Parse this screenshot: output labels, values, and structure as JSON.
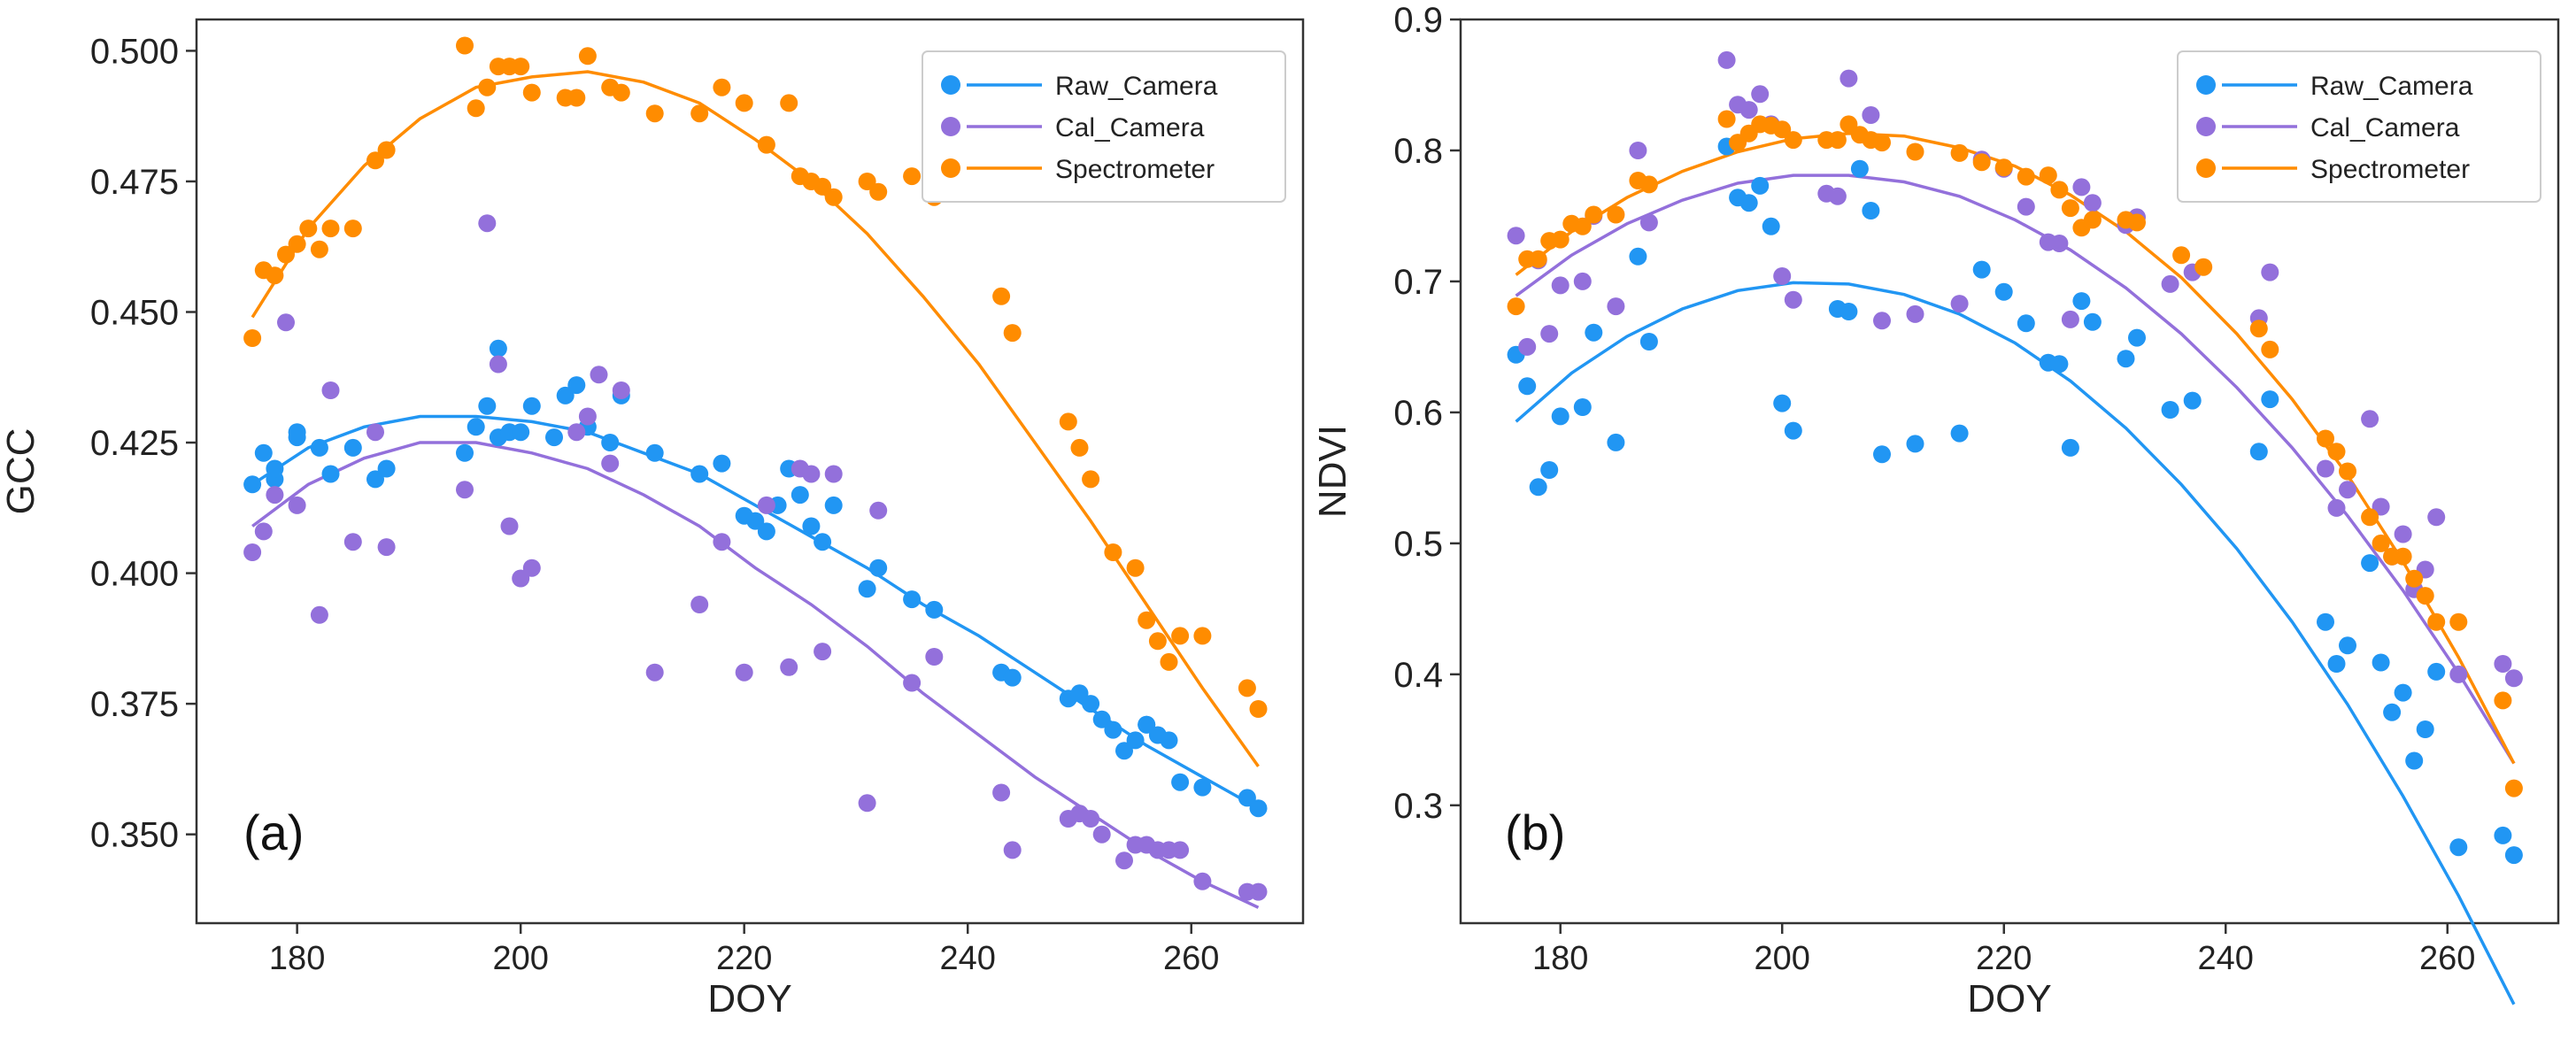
{
  "figure": {
    "panels": [
      "(a)",
      "(b)"
    ]
  },
  "chart_data": [
    {
      "type": "scatter",
      "panel_label": "(a)",
      "xlabel": "DOY",
      "ylabel": "GCC",
      "xlim": [
        171,
        270
      ],
      "ylim": [
        0.333,
        0.506
      ],
      "xticks": [
        180,
        200,
        220,
        240,
        260
      ],
      "yticks": [
        "0.350",
        "0.375",
        "0.400",
        "0.425",
        "0.450",
        "0.475",
        "0.500"
      ],
      "ytick_values": [
        0.35,
        0.375,
        0.4,
        0.425,
        0.45,
        0.475,
        0.5
      ],
      "legend_position": "top-right",
      "grid": false,
      "series": [
        {
          "name": "Raw_Camera",
          "color": "#2196f3",
          "x": [
            176,
            177,
            178,
            178,
            180,
            180,
            182,
            183,
            185,
            187,
            188,
            195,
            196,
            197,
            198,
            198,
            199,
            200,
            201,
            203,
            204,
            205,
            206,
            208,
            209,
            212,
            216,
            218,
            220,
            221,
            222,
            223,
            224,
            225,
            226,
            227,
            228,
            231,
            232,
            235,
            237,
            243,
            244,
            249,
            250,
            251,
            252,
            253,
            254,
            255,
            256,
            256,
            257,
            258,
            259,
            261,
            265,
            266
          ],
          "y": [
            0.417,
            0.423,
            0.418,
            0.42,
            0.426,
            0.427,
            0.424,
            0.419,
            0.424,
            0.418,
            0.42,
            0.423,
            0.428,
            0.432,
            0.443,
            0.426,
            0.427,
            0.427,
            0.432,
            0.426,
            0.434,
            0.436,
            0.428,
            0.425,
            0.434,
            0.423,
            0.419,
            0.421,
            0.411,
            0.41,
            0.408,
            0.413,
            0.42,
            0.415,
            0.409,
            0.406,
            0.413,
            0.397,
            0.401,
            0.395,
            0.393,
            0.381,
            0.38,
            0.376,
            0.377,
            0.375,
            0.372,
            0.37,
            0.366,
            0.368,
            0.371,
            0.371,
            0.369,
            0.368,
            0.36,
            0.359,
            0.357,
            0.355
          ],
          "fit_x": [
            176,
            181,
            186,
            191,
            196,
            201,
            206,
            211,
            216,
            221,
            226,
            231,
            236,
            241,
            246,
            251,
            256,
            261,
            266
          ],
          "fit_y": [
            0.417,
            0.424,
            0.428,
            0.43,
            0.43,
            0.429,
            0.427,
            0.423,
            0.419,
            0.413,
            0.407,
            0.401,
            0.394,
            0.388,
            0.381,
            0.374,
            0.367,
            0.361,
            0.355
          ]
        },
        {
          "name": "Cal_Camera",
          "color": "#9370db",
          "x": [
            176,
            177,
            178,
            179,
            180,
            182,
            183,
            185,
            187,
            188,
            195,
            197,
            198,
            199,
            200,
            201,
            205,
            206,
            207,
            208,
            209,
            212,
            216,
            218,
            220,
            222,
            224,
            225,
            226,
            227,
            228,
            231,
            232,
            235,
            237,
            243,
            244,
            249,
            250,
            251,
            252,
            254,
            255,
            256,
            257,
            258,
            259,
            261,
            265,
            266
          ],
          "y": [
            0.404,
            0.408,
            0.415,
            0.448,
            0.413,
            0.392,
            0.435,
            0.406,
            0.427,
            0.405,
            0.416,
            0.467,
            0.44,
            0.409,
            0.399,
            0.401,
            0.427,
            0.43,
            0.438,
            0.421,
            0.435,
            0.381,
            0.394,
            0.406,
            0.381,
            0.413,
            0.382,
            0.42,
            0.419,
            0.385,
            0.419,
            0.356,
            0.412,
            0.379,
            0.384,
            0.358,
            0.347,
            0.353,
            0.354,
            0.353,
            0.35,
            0.345,
            0.348,
            0.348,
            0.347,
            0.347,
            0.347,
            0.341,
            0.339,
            0.339
          ],
          "fit_x": [
            176,
            181,
            186,
            191,
            196,
            201,
            206,
            211,
            216,
            221,
            226,
            231,
            236,
            241,
            246,
            251,
            256,
            261,
            266
          ],
          "fit_y": [
            0.409,
            0.417,
            0.422,
            0.425,
            0.425,
            0.423,
            0.42,
            0.415,
            0.409,
            0.401,
            0.394,
            0.386,
            0.377,
            0.369,
            0.361,
            0.354,
            0.347,
            0.341,
            0.336
          ]
        },
        {
          "name": "Spectrometer",
          "color": "#ff8c00",
          "x": [
            176,
            177,
            178,
            179,
            180,
            181,
            182,
            183,
            185,
            187,
            188,
            195,
            196,
            197,
            198,
            199,
            200,
            201,
            204,
            205,
            206,
            208,
            209,
            212,
            216,
            218,
            220,
            222,
            224,
            225,
            226,
            227,
            228,
            231,
            232,
            235,
            237,
            243,
            244,
            249,
            250,
            251,
            253,
            255,
            256,
            257,
            258,
            259,
            261,
            265,
            266
          ],
          "y": [
            0.445,
            0.458,
            0.457,
            0.461,
            0.463,
            0.466,
            0.462,
            0.466,
            0.466,
            0.479,
            0.481,
            0.501,
            0.489,
            0.493,
            0.497,
            0.497,
            0.497,
            0.492,
            0.491,
            0.491,
            0.499,
            0.493,
            0.492,
            0.488,
            0.488,
            0.493,
            0.49,
            0.482,
            0.49,
            0.476,
            0.475,
            0.474,
            0.472,
            0.475,
            0.473,
            0.476,
            0.472,
            0.453,
            0.446,
            0.429,
            0.424,
            0.418,
            0.404,
            0.401,
            0.391,
            0.387,
            0.383,
            0.388,
            0.388,
            0.378,
            0.374
          ],
          "fit_x": [
            176,
            181,
            186,
            191,
            196,
            201,
            206,
            211,
            216,
            221,
            226,
            231,
            236,
            241,
            246,
            251,
            256,
            261,
            266
          ],
          "fit_y": [
            0.449,
            0.466,
            0.478,
            0.487,
            0.493,
            0.495,
            0.496,
            0.494,
            0.49,
            0.483,
            0.475,
            0.465,
            0.453,
            0.44,
            0.425,
            0.41,
            0.394,
            0.378,
            0.363
          ]
        }
      ]
    },
    {
      "type": "scatter",
      "panel_label": "(b)",
      "xlabel": "DOY",
      "ylabel": "NDVI",
      "xlim": [
        171,
        270
      ],
      "ylim": [
        0.21,
        0.9
      ],
      "xticks": [
        180,
        200,
        220,
        240,
        260
      ],
      "yticks": [
        "0.3",
        "0.4",
        "0.5",
        "0.6",
        "0.7",
        "0.8",
        "0.9"
      ],
      "ytick_values": [
        0.3,
        0.4,
        0.5,
        0.6,
        0.7,
        0.8,
        0.9
      ],
      "legend_position": "top-right",
      "grid": false,
      "series": [
        {
          "name": "Raw_Camera",
          "color": "#2196f3",
          "x": [
            176,
            177,
            178,
            179,
            180,
            182,
            183,
            185,
            187,
            188,
            195,
            196,
            197,
            198,
            199,
            200,
            201,
            205,
            206,
            207,
            208,
            209,
            212,
            216,
            218,
            220,
            222,
            224,
            225,
            226,
            227,
            228,
            231,
            232,
            235,
            237,
            243,
            244,
            249,
            250,
            251,
            253,
            254,
            255,
            256,
            257,
            258,
            259,
            261,
            265,
            266
          ],
          "y": [
            0.644,
            0.62,
            0.543,
            0.556,
            0.597,
            0.604,
            0.661,
            0.577,
            0.719,
            0.654,
            0.803,
            0.764,
            0.76,
            0.773,
            0.742,
            0.607,
            0.586,
            0.679,
            0.677,
            0.786,
            0.754,
            0.568,
            0.576,
            0.584,
            0.709,
            0.692,
            0.668,
            0.638,
            0.637,
            0.573,
            0.685,
            0.669,
            0.641,
            0.657,
            0.602,
            0.609,
            0.57,
            0.61,
            0.44,
            0.408,
            0.422,
            0.485,
            0.409,
            0.371,
            0.386,
            0.334,
            0.358,
            0.402,
            0.268,
            0.277,
            0.262
          ],
          "fit_x": [
            176,
            181,
            186,
            191,
            196,
            201,
            206,
            211,
            216,
            221,
            226,
            231,
            236,
            241,
            246,
            251,
            256,
            261,
            266
          ],
          "fit_y": [
            0.593,
            0.63,
            0.658,
            0.679,
            0.693,
            0.699,
            0.698,
            0.69,
            0.675,
            0.653,
            0.624,
            0.588,
            0.545,
            0.496,
            0.44,
            0.377,
            0.307,
            0.231,
            0.148
          ]
        },
        {
          "name": "Cal_Camera",
          "color": "#9370db",
          "x": [
            176,
            177,
            178,
            179,
            180,
            182,
            183,
            185,
            187,
            188,
            195,
            196,
            197,
            198,
            199,
            200,
            201,
            204,
            205,
            206,
            208,
            209,
            212,
            216,
            218,
            220,
            222,
            224,
            225,
            226,
            227,
            228,
            231,
            232,
            235,
            237,
            243,
            244,
            249,
            250,
            251,
            253,
            254,
            255,
            256,
            257,
            258,
            259,
            261,
            265,
            266
          ],
          "y": [
            0.735,
            0.65,
            0.716,
            0.66,
            0.697,
            0.7,
            0.75,
            0.681,
            0.8,
            0.745,
            0.869,
            0.835,
            0.831,
            0.843,
            0.82,
            0.704,
            0.686,
            0.767,
            0.765,
            0.855,
            0.827,
            0.67,
            0.675,
            0.683,
            0.793,
            0.786,
            0.757,
            0.73,
            0.729,
            0.671,
            0.772,
            0.76,
            0.743,
            0.749,
            0.698,
            0.707,
            0.672,
            0.707,
            0.557,
            0.527,
            0.541,
            0.595,
            0.528,
            0.49,
            0.507,
            0.465,
            0.48,
            0.52,
            0.4,
            0.408,
            0.397
          ],
          "fit_x": [
            176,
            181,
            186,
            191,
            196,
            201,
            206,
            211,
            216,
            221,
            226,
            231,
            236,
            241,
            246,
            251,
            256,
            261,
            266
          ],
          "fit_y": [
            0.689,
            0.72,
            0.744,
            0.762,
            0.775,
            0.781,
            0.781,
            0.776,
            0.765,
            0.747,
            0.724,
            0.695,
            0.66,
            0.619,
            0.573,
            0.521,
            0.464,
            0.401,
            0.332
          ]
        },
        {
          "name": "Spectrometer",
          "color": "#ff8c00",
          "x": [
            176,
            177,
            178,
            179,
            180,
            181,
            182,
            183,
            185,
            187,
            188,
            195,
            196,
            197,
            198,
            199,
            200,
            201,
            204,
            205,
            206,
            207,
            208,
            209,
            212,
            216,
            218,
            220,
            222,
            224,
            225,
            226,
            227,
            228,
            231,
            232,
            236,
            238,
            243,
            244,
            249,
            250,
            251,
            253,
            254,
            255,
            256,
            257,
            258,
            259,
            261,
            265,
            266
          ],
          "y": [
            0.681,
            0.717,
            0.717,
            0.731,
            0.732,
            0.744,
            0.742,
            0.751,
            0.751,
            0.777,
            0.774,
            0.824,
            0.806,
            0.813,
            0.82,
            0.819,
            0.816,
            0.808,
            0.808,
            0.808,
            0.82,
            0.812,
            0.808,
            0.806,
            0.799,
            0.798,
            0.791,
            0.787,
            0.78,
            0.781,
            0.77,
            0.756,
            0.741,
            0.747,
            0.747,
            0.745,
            0.72,
            0.711,
            0.664,
            0.648,
            0.58,
            0.57,
            0.555,
            0.52,
            0.5,
            0.49,
            0.49,
            0.473,
            0.46,
            0.44,
            0.44,
            0.38,
            0.313
          ],
          "fit_x": [
            176,
            181,
            186,
            191,
            196,
            201,
            206,
            211,
            216,
            221,
            226,
            231,
            236,
            241,
            246,
            251,
            256,
            261,
            266
          ],
          "fit_y": [
            0.705,
            0.738,
            0.764,
            0.784,
            0.799,
            0.809,
            0.813,
            0.811,
            0.802,
            0.788,
            0.766,
            0.738,
            0.703,
            0.66,
            0.61,
            0.552,
            0.486,
            0.413,
            0.332
          ]
        }
      ]
    }
  ]
}
